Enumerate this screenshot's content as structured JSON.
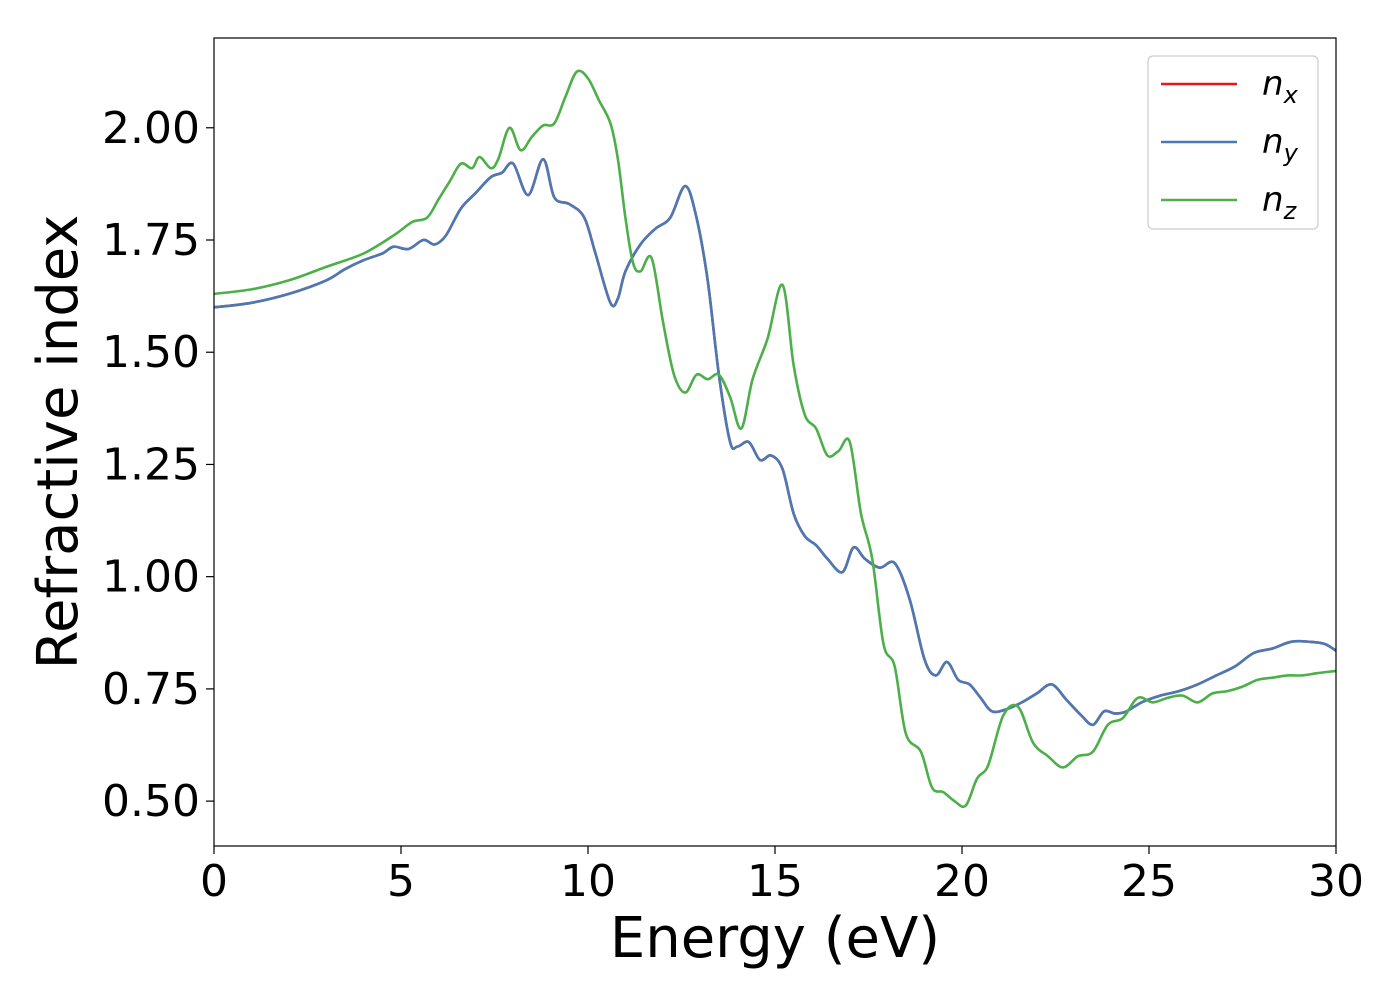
{
  "chart_data": {
    "type": "line",
    "title": "",
    "xlabel": "Energy (eV)",
    "ylabel": "Refractive index",
    "xlim": [
      0,
      30
    ],
    "ylim": [
      0.4,
      2.2
    ],
    "xticks": [
      0,
      5,
      10,
      15,
      20,
      25,
      30
    ],
    "yticks": [
      0.5,
      0.75,
      1.0,
      1.25,
      1.5,
      1.75,
      2.0
    ],
    "xtick_labels": [
      "0",
      "5",
      "10",
      "15",
      "20",
      "25",
      "30"
    ],
    "ytick_labels": [
      "0.50",
      "0.75",
      "1.00",
      "1.25",
      "1.50",
      "1.75",
      "2.00"
    ],
    "grid": false,
    "legend_position": "top-right",
    "series": [
      {
        "name": "n_x",
        "legend_base": "n",
        "legend_sub": "x",
        "color": "#e41a1c",
        "x": [
          0,
          1,
          2,
          3,
          3.5,
          4,
          4.5,
          4.8,
          5.2,
          5.6,
          5.9,
          6.2,
          6.6,
          7,
          7.4,
          7.7,
          8,
          8.4,
          8.8,
          9.1,
          9.5,
          9.9,
          10.2,
          10.6,
          10.8,
          11,
          11.4,
          11.8,
          12.2,
          12.6,
          12.9,
          13.2,
          13.5,
          13.8,
          14,
          14.3,
          14.6,
          14.9,
          15.2,
          15.5,
          15.8,
          16.1,
          16.4,
          16.8,
          17.1,
          17.4,
          17.8,
          18.2,
          18.6,
          19,
          19.3,
          19.6,
          19.9,
          20.2,
          20.5,
          20.8,
          21.2,
          21.6,
          22,
          22.4,
          22.8,
          23.2,
          23.5,
          23.8,
          24.1,
          24.4,
          24.8,
          25.3,
          25.8,
          26.3,
          26.8,
          27.3,
          27.8,
          28.3,
          28.8,
          29.3,
          29.7,
          30
        ],
        "y": [
          1.6,
          1.61,
          1.63,
          1.66,
          1.685,
          1.705,
          1.72,
          1.735,
          1.73,
          1.75,
          1.74,
          1.76,
          1.82,
          1.855,
          1.89,
          1.9,
          1.92,
          1.85,
          1.93,
          1.845,
          1.83,
          1.8,
          1.72,
          1.61,
          1.62,
          1.68,
          1.74,
          1.775,
          1.8,
          1.87,
          1.8,
          1.66,
          1.45,
          1.3,
          1.29,
          1.3,
          1.26,
          1.27,
          1.24,
          1.14,
          1.09,
          1.07,
          1.04,
          1.01,
          1.065,
          1.04,
          1.02,
          1.03,
          0.95,
          0.815,
          0.78,
          0.81,
          0.77,
          0.76,
          0.73,
          0.7,
          0.705,
          0.72,
          0.74,
          0.76,
          0.725,
          0.69,
          0.67,
          0.7,
          0.695,
          0.7,
          0.72,
          0.735,
          0.745,
          0.76,
          0.78,
          0.8,
          0.83,
          0.84,
          0.855,
          0.855,
          0.85,
          0.835
        ]
      },
      {
        "name": "n_y",
        "legend_base": "n",
        "legend_sub": "y",
        "color": "#4a7ab5",
        "x": [
          0,
          1,
          2,
          3,
          3.5,
          4,
          4.5,
          4.8,
          5.2,
          5.6,
          5.9,
          6.2,
          6.6,
          7,
          7.4,
          7.7,
          8,
          8.4,
          8.8,
          9.1,
          9.5,
          9.9,
          10.2,
          10.6,
          10.8,
          11,
          11.4,
          11.8,
          12.2,
          12.6,
          12.9,
          13.2,
          13.5,
          13.8,
          14,
          14.3,
          14.6,
          14.9,
          15.2,
          15.5,
          15.8,
          16.1,
          16.4,
          16.8,
          17.1,
          17.4,
          17.8,
          18.2,
          18.6,
          19,
          19.3,
          19.6,
          19.9,
          20.2,
          20.5,
          20.8,
          21.2,
          21.6,
          22,
          22.4,
          22.8,
          23.2,
          23.5,
          23.8,
          24.1,
          24.4,
          24.8,
          25.3,
          25.8,
          26.3,
          26.8,
          27.3,
          27.8,
          28.3,
          28.8,
          29.3,
          29.7,
          30
        ],
        "y": [
          1.6,
          1.61,
          1.63,
          1.66,
          1.685,
          1.705,
          1.72,
          1.735,
          1.73,
          1.75,
          1.74,
          1.76,
          1.82,
          1.855,
          1.89,
          1.9,
          1.92,
          1.85,
          1.93,
          1.845,
          1.83,
          1.8,
          1.72,
          1.61,
          1.62,
          1.68,
          1.74,
          1.775,
          1.8,
          1.87,
          1.8,
          1.66,
          1.45,
          1.3,
          1.29,
          1.3,
          1.26,
          1.27,
          1.24,
          1.14,
          1.09,
          1.07,
          1.04,
          1.01,
          1.065,
          1.04,
          1.02,
          1.03,
          0.95,
          0.815,
          0.78,
          0.81,
          0.77,
          0.76,
          0.73,
          0.7,
          0.705,
          0.72,
          0.74,
          0.76,
          0.725,
          0.69,
          0.67,
          0.7,
          0.695,
          0.7,
          0.72,
          0.735,
          0.745,
          0.76,
          0.78,
          0.8,
          0.83,
          0.84,
          0.855,
          0.855,
          0.85,
          0.835
        ]
      },
      {
        "name": "n_z",
        "legend_base": "n",
        "legend_sub": "z",
        "color": "#4daf4a",
        "x": [
          0,
          1,
          2,
          3,
          4,
          4.8,
          5.3,
          5.7,
          6,
          6.3,
          6.6,
          6.9,
          7.1,
          7.4,
          7.6,
          7.9,
          8.2,
          8.5,
          8.8,
          9.1,
          9.4,
          9.7,
          10,
          10.3,
          10.6,
          10.8,
          11,
          11.2,
          11.4,
          11.7,
          12,
          12.3,
          12.6,
          12.9,
          13.2,
          13.5,
          13.8,
          14.1,
          14.4,
          14.8,
          15.2,
          15.5,
          15.8,
          16.1,
          16.4,
          16.7,
          17,
          17.3,
          17.6,
          17.9,
          18.2,
          18.5,
          18.9,
          19.2,
          19.5,
          19.8,
          20.1,
          20.4,
          20.7,
          21.1,
          21.5,
          21.9,
          22.3,
          22.7,
          23.1,
          23.5,
          23.9,
          24.3,
          24.7,
          25.1,
          25.5,
          25.9,
          26.3,
          26.7,
          27.1,
          27.5,
          27.9,
          28.3,
          28.7,
          29.1,
          29.5,
          30
        ],
        "y": [
          1.63,
          1.64,
          1.66,
          1.69,
          1.72,
          1.76,
          1.79,
          1.8,
          1.84,
          1.88,
          1.92,
          1.91,
          1.935,
          1.91,
          1.93,
          2.0,
          1.95,
          1.98,
          2.005,
          2.01,
          2.07,
          2.125,
          2.11,
          2.06,
          2.01,
          1.93,
          1.8,
          1.7,
          1.68,
          1.71,
          1.57,
          1.45,
          1.41,
          1.45,
          1.44,
          1.45,
          1.4,
          1.33,
          1.44,
          1.53,
          1.65,
          1.47,
          1.36,
          1.33,
          1.27,
          1.28,
          1.3,
          1.14,
          1.04,
          0.85,
          0.8,
          0.65,
          0.61,
          0.53,
          0.52,
          0.5,
          0.49,
          0.55,
          0.58,
          0.69,
          0.71,
          0.63,
          0.6,
          0.575,
          0.6,
          0.61,
          0.67,
          0.685,
          0.73,
          0.72,
          0.73,
          0.735,
          0.72,
          0.74,
          0.745,
          0.755,
          0.77,
          0.775,
          0.78,
          0.78,
          0.785,
          0.79
        ]
      }
    ]
  }
}
